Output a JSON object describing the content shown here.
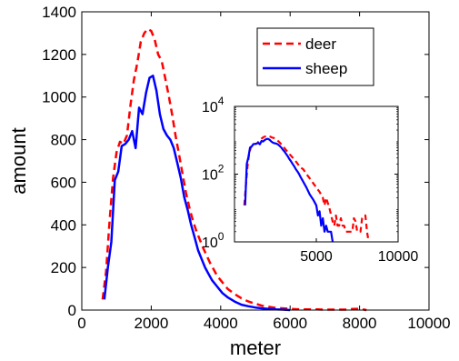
{
  "chart_data": [
    {
      "type": "line",
      "role": "main",
      "xlabel": "meter",
      "ylabel": "amount",
      "xlim": [
        0,
        10000
      ],
      "ylim": [
        0,
        1400
      ],
      "xticks": [
        0,
        2000,
        4000,
        6000,
        8000,
        10000
      ],
      "yticks": [
        0,
        200,
        400,
        600,
        800,
        1000,
        1200,
        1400
      ],
      "x_tick_labels": [
        "0",
        "2000",
        "4000",
        "6000",
        "8000",
        "10000"
      ],
      "y_tick_labels": [
        "0",
        "200",
        "400",
        "600",
        "800",
        "1000",
        "1200",
        "1400"
      ],
      "grid": false,
      "legend_position": "top-right",
      "series": [
        {
          "name": "deer",
          "color": "#ff0000",
          "style": "dashed",
          "x": [
            600,
            700,
            800,
            900,
            1000,
            1100,
            1200,
            1300,
            1400,
            1500,
            1600,
            1700,
            1800,
            1900,
            2000,
            2100,
            2200,
            2300,
            2400,
            2500,
            2600,
            2700,
            2800,
            2900,
            3000,
            3100,
            3200,
            3300,
            3400,
            3500,
            3600,
            3700,
            3800,
            3900,
            4000,
            4200,
            4400,
            4600,
            4800,
            5000,
            5200,
            5400,
            5600,
            5800,
            6000,
            6200,
            6400,
            6600,
            6800,
            7000,
            7200,
            7400,
            7600,
            7800,
            8000,
            8200
          ],
          "y": [
            50,
            180,
            420,
            620,
            740,
            790,
            780,
            820,
            960,
            1080,
            1160,
            1260,
            1300,
            1320,
            1310,
            1270,
            1200,
            1170,
            1090,
            1010,
            920,
            820,
            730,
            640,
            550,
            480,
            420,
            370,
            330,
            290,
            255,
            220,
            190,
            160,
            140,
            100,
            75,
            55,
            40,
            30,
            20,
            15,
            10,
            8,
            6,
            4,
            3,
            3,
            3,
            2,
            2,
            2,
            2,
            5,
            6,
            0
          ]
        },
        {
          "name": "sheep",
          "color": "#0000ff",
          "style": "solid",
          "x": [
            650,
            750,
            850,
            950,
            1050,
            1150,
            1250,
            1350,
            1450,
            1550,
            1650,
            1750,
            1850,
            1950,
            2050,
            2150,
            2250,
            2350,
            2450,
            2550,
            2650,
            2750,
            2850,
            2950,
            3050,
            3150,
            3250,
            3350,
            3450,
            3550,
            3650,
            3750,
            3850,
            3950,
            4050,
            4200,
            4400,
            4600,
            4800,
            5000,
            5200,
            5400,
            5600,
            5800,
            6000
          ],
          "y": [
            50,
            200,
            320,
            610,
            650,
            770,
            780,
            800,
            840,
            760,
            950,
            920,
            1020,
            1090,
            1100,
            1030,
            920,
            850,
            820,
            800,
            760,
            690,
            620,
            530,
            470,
            400,
            340,
            280,
            240,
            200,
            170,
            140,
            120,
            100,
            80,
            60,
            40,
            25,
            18,
            12,
            8,
            5,
            3,
            2,
            0
          ]
        }
      ]
    },
    {
      "type": "line",
      "role": "inset",
      "scale_y": "log",
      "xlim": [
        0,
        10000
      ],
      "ylim": [
        1,
        10000
      ],
      "xticks": [
        0,
        5000,
        10000
      ],
      "x_tick_labels": [
        "",
        "5000",
        "10000"
      ],
      "y_ticks": [
        1,
        100,
        10000
      ],
      "y_tick_labels": [
        {
          "base": "10",
          "exp": "0"
        },
        {
          "base": "10",
          "exp": "2"
        },
        {
          "base": "10",
          "exp": "4"
        }
      ],
      "grid": false,
      "series": [
        {
          "name": "deer",
          "color": "#ff0000",
          "style": "dashed",
          "x": [
            600,
            700,
            800,
            900,
            1000,
            1100,
            1200,
            1300,
            1400,
            1500,
            1600,
            1700,
            1800,
            1900,
            2000,
            2100,
            2200,
            2300,
            2400,
            2500,
            2600,
            2700,
            2800,
            2900,
            3000,
            3100,
            3200,
            3300,
            3400,
            3500,
            3600,
            3700,
            3800,
            3900,
            4000,
            4200,
            4400,
            4600,
            4800,
            5000,
            5200,
            5400,
            5500,
            5600,
            5800,
            6000,
            6100,
            6200,
            6300,
            6400,
            6500,
            6600,
            6700,
            6800,
            6900,
            7000,
            7100,
            7200,
            7300,
            7400,
            7500,
            7600,
            7700,
            7800,
            7900,
            8000,
            8100,
            8200
          ],
          "y": [
            12,
            50,
            180,
            420,
            620,
            740,
            790,
            780,
            820,
            960,
            1080,
            1160,
            1260,
            1300,
            1320,
            1310,
            1270,
            1200,
            1170,
            1090,
            1010,
            920,
            820,
            730,
            640,
            550,
            480,
            420,
            370,
            330,
            290,
            255,
            220,
            190,
            160,
            140,
            100,
            75,
            55,
            40,
            30,
            20,
            12,
            20,
            10,
            4,
            3,
            6,
            3,
            3,
            5,
            3,
            3,
            2,
            2,
            2,
            2,
            2,
            5,
            4,
            2,
            2,
            2,
            5,
            6,
            6,
            2,
            1
          ]
        },
        {
          "name": "sheep",
          "color": "#0000ff",
          "style": "solid",
          "x": [
            650,
            750,
            850,
            950,
            1050,
            1150,
            1250,
            1350,
            1450,
            1550,
            1650,
            1750,
            1850,
            1950,
            2050,
            2150,
            2250,
            2350,
            2450,
            2550,
            2650,
            2750,
            2850,
            2950,
            3050,
            3150,
            3250,
            3350,
            3450,
            3550,
            3650,
            3750,
            3850,
            3950,
            4050,
            4200,
            4400,
            4600,
            4800,
            5000,
            5100,
            5200,
            5300,
            5400,
            5500,
            5600,
            5700,
            5800,
            5900,
            6000
          ],
          "y": [
            12,
            200,
            320,
            610,
            650,
            770,
            780,
            800,
            840,
            760,
            950,
            920,
            1020,
            1090,
            1100,
            1030,
            920,
            850,
            820,
            800,
            760,
            690,
            620,
            530,
            470,
            400,
            340,
            280,
            240,
            200,
            170,
            140,
            120,
            100,
            80,
            60,
            40,
            25,
            18,
            12,
            6,
            8,
            3,
            5,
            2,
            3,
            2,
            2,
            2,
            1
          ]
        }
      ]
    }
  ]
}
